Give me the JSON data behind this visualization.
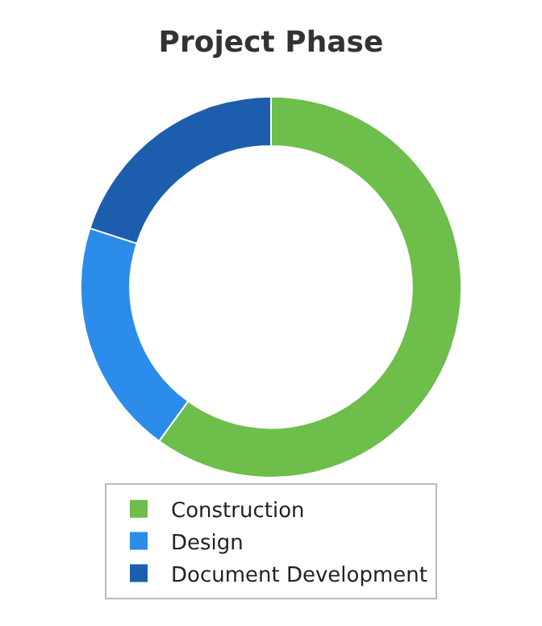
{
  "chart_data": {
    "type": "donut",
    "title": "Project Phase",
    "categories": [
      "Construction",
      "Design",
      "Document Development"
    ],
    "values": [
      60,
      20,
      20
    ],
    "colors": [
      "#6dbe4b",
      "#2b8ce9",
      "#1c5ead"
    ],
    "legend": "bottom"
  }
}
